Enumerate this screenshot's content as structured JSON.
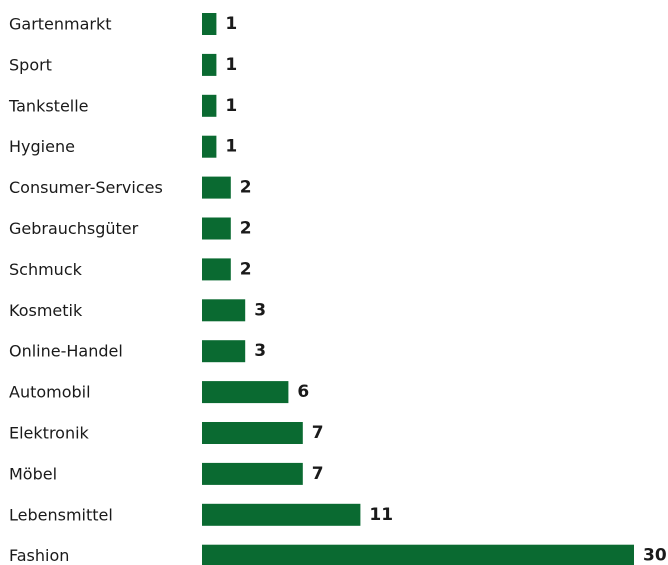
{
  "chart_data": {
    "type": "bar",
    "orientation": "horizontal",
    "categories": [
      "Gartenmarkt",
      "Sport",
      "Tankstelle",
      "Hygiene",
      "Consumer-Services",
      "Gebrauchsgüter",
      "Schmuck",
      "Kosmetik",
      "Online-Handel",
      "Automobil",
      "Elektronik",
      "Möbel",
      "Lebensmittel",
      "Fashion"
    ],
    "values": [
      1,
      1,
      1,
      1,
      2,
      2,
      2,
      3,
      3,
      6,
      7,
      7,
      11,
      30
    ],
    "data_labels": [
      "1",
      "1",
      "1",
      "1",
      "2",
      "2",
      "2",
      "3",
      "3",
      "6",
      "7",
      "7",
      "11",
      "30"
    ],
    "xlim": [
      0,
      30
    ],
    "grid": false,
    "legend": "none",
    "title": "",
    "xlabel": "",
    "ylabel": ""
  },
  "colors": {
    "bar": "#0a6a31",
    "text": "#1a1a1a",
    "background": "#ffffff"
  }
}
